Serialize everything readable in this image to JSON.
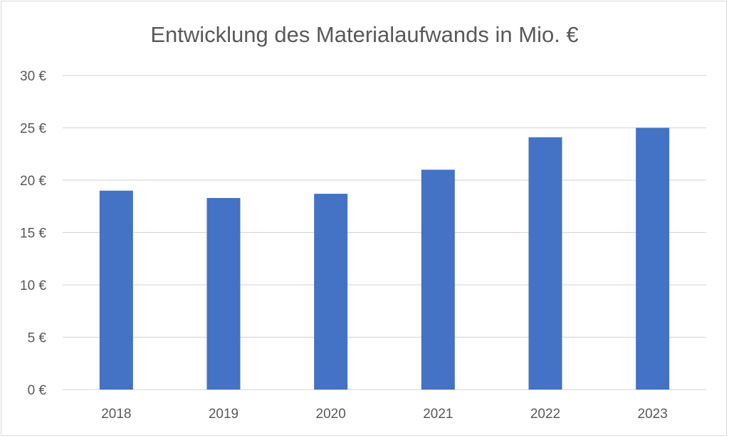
{
  "chart_data": {
    "type": "bar",
    "title": "Entwicklung des Materialaufwands in Mio. €",
    "xlabel": "",
    "ylabel": "",
    "categories": [
      "2018",
      "2019",
      "2020",
      "2021",
      "2022",
      "2023"
    ],
    "values": [
      19.0,
      18.3,
      18.7,
      21.0,
      24.1,
      25.0
    ],
    "ylim": [
      0,
      30
    ],
    "yticks": [
      0,
      5,
      10,
      15,
      20,
      25,
      30
    ],
    "ytick_labels": [
      "0 €",
      "5 €",
      "10 €",
      "15 €",
      "20 €",
      "25 €",
      "30 €"
    ],
    "grid": true,
    "legend": "none",
    "bar_color": "#4472C4",
    "grid_color": "#D9D9D9"
  }
}
